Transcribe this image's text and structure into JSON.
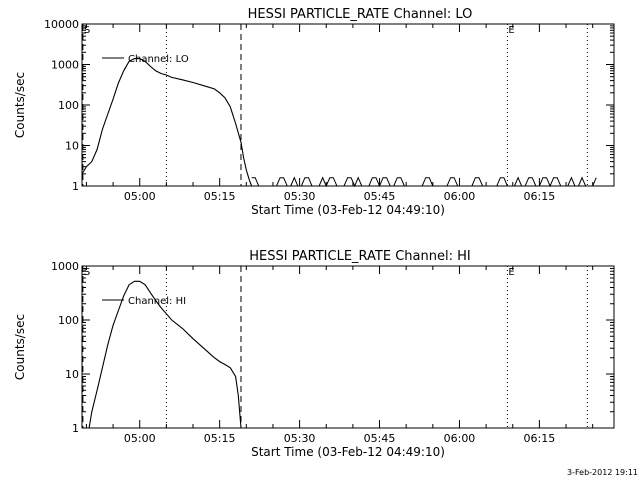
{
  "footer": {
    "timestamp": "3-Feb-2012 19:11"
  },
  "chart_data": [
    {
      "type": "line",
      "title": "HESSI PARTICLE_RATE Channel: LO",
      "xlabel": "Start Time (03-Feb-12 04:49:10)",
      "ylabel": "Counts/sec",
      "yscale": "log",
      "xlim": [
        "04:49:10",
        "06:29:00"
      ],
      "ylim": [
        1,
        10000
      ],
      "x_ticks": [
        "05:00",
        "05:15",
        "05:30",
        "05:45",
        "06:00",
        "06:15"
      ],
      "y_ticks": [
        "1",
        "10",
        "100",
        "1000",
        "10000"
      ],
      "legend": {
        "entries": [
          "Channel: LO"
        ],
        "position": "top-left"
      },
      "markers": [
        {
          "time": "04:49:20",
          "style": "dashed",
          "label": "S"
        },
        {
          "time": "05:05:00",
          "style": "dotted",
          "label": ""
        },
        {
          "time": "05:19:00",
          "style": "dashed",
          "label": ""
        },
        {
          "time": "06:09:00",
          "style": "dotted",
          "label": "E"
        },
        {
          "time": "06:24:00",
          "style": "dotted",
          "label": ""
        }
      ],
      "series": [
        {
          "name": "Channel: LO",
          "x": [
            "04:49:10",
            "04:50:00",
            "04:51:00",
            "04:52:00",
            "04:53:00",
            "04:54:00",
            "04:55:00",
            "04:56:00",
            "04:57:00",
            "04:58:00",
            "04:59:00",
            "05:00:00",
            "05:01:00",
            "05:02:00",
            "05:03:00",
            "05:04:00",
            "05:05:00",
            "05:06:00",
            "05:08:00",
            "05:10:00",
            "05:12:00",
            "05:14:00",
            "05:15:00",
            "05:16:00",
            "05:17:00",
            "05:18:00",
            "05:19:00",
            "05:19:30",
            "05:20:00",
            "05:20:30",
            "05:21:00"
          ],
          "y": [
            2,
            3,
            4,
            8,
            25,
            60,
            140,
            350,
            700,
            1200,
            1400,
            1400,
            1200,
            900,
            700,
            600,
            550,
            480,
            420,
            360,
            300,
            250,
            200,
            150,
            90,
            35,
            12,
            5,
            2.5,
            1.5,
            1
          ]
        }
      ]
    },
    {
      "type": "line",
      "title": "HESSI PARTICLE_RATE Channel: HI",
      "xlabel": "Start Time (03-Feb-12 04:49:10)",
      "ylabel": "Counts/sec",
      "yscale": "log",
      "xlim": [
        "04:49:10",
        "06:29:00"
      ],
      "ylim": [
        1,
        1000
      ],
      "x_ticks": [
        "05:00",
        "05:15",
        "05:30",
        "05:45",
        "06:00",
        "06:15"
      ],
      "y_ticks": [
        "1",
        "10",
        "100",
        "1000"
      ],
      "legend": {
        "entries": [
          "Channel: HI"
        ],
        "position": "top-left"
      },
      "markers": [
        {
          "time": "04:49:20",
          "style": "dashed",
          "label": "S"
        },
        {
          "time": "05:05:00",
          "style": "dotted",
          "label": ""
        },
        {
          "time": "05:19:00",
          "style": "dashed",
          "label": ""
        },
        {
          "time": "06:09:00",
          "style": "dotted",
          "label": "E"
        },
        {
          "time": "06:24:00",
          "style": "dotted",
          "label": ""
        }
      ],
      "series": [
        {
          "name": "Channel: HI",
          "x": [
            "04:50:30",
            "04:51:00",
            "04:52:00",
            "04:53:00",
            "04:54:00",
            "04:55:00",
            "04:56:00",
            "04:57:00",
            "04:58:00",
            "04:59:00",
            "05:00:00",
            "05:01:00",
            "05:02:00",
            "05:03:00",
            "05:04:00",
            "05:05:00",
            "05:06:00",
            "05:08:00",
            "05:10:00",
            "05:12:00",
            "05:14:00",
            "05:15:00",
            "05:16:00",
            "05:17:00",
            "05:18:00",
            "05:18:30",
            "05:19:00"
          ],
          "y": [
            1,
            2,
            5,
            13,
            35,
            80,
            150,
            280,
            450,
            520,
            520,
            450,
            320,
            230,
            170,
            130,
            100,
            70,
            45,
            30,
            20,
            17,
            15,
            13,
            9,
            4,
            1
          ]
        }
      ]
    }
  ]
}
